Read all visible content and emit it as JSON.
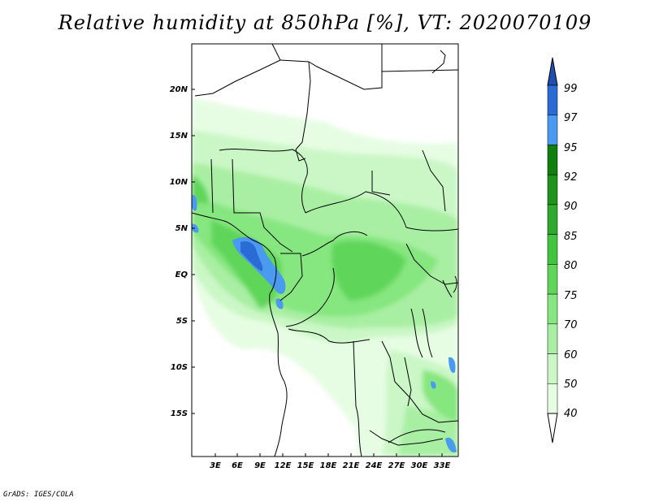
{
  "title": "Relative humidity at 850hPa [%], VT: 2020070109",
  "footer": "GrADS: IGES/COLA",
  "map": {
    "lat_labels": [
      "20N",
      "15N",
      "10N",
      "5N",
      "EQ",
      "5S",
      "10S",
      "15S"
    ],
    "lon_labels": [
      "3E",
      "6E",
      "9E",
      "12E",
      "15E",
      "18E",
      "21E",
      "24E",
      "27E",
      "30E",
      "33E"
    ]
  },
  "colorbar": {
    "labels": [
      "40",
      "50",
      "60",
      "70",
      "75",
      "80",
      "85",
      "90",
      "92",
      "95",
      "97",
      "99"
    ],
    "colors": [
      "#ffffff",
      "#e6fde3",
      "#cbf7c6",
      "#a9efa3",
      "#86e67f",
      "#5fd65a",
      "#43c43f",
      "#2faa2c",
      "#1e941c",
      "#0f7f0e",
      "#4a9af0",
      "#2a6bd6",
      "#1f4fb0"
    ]
  }
}
